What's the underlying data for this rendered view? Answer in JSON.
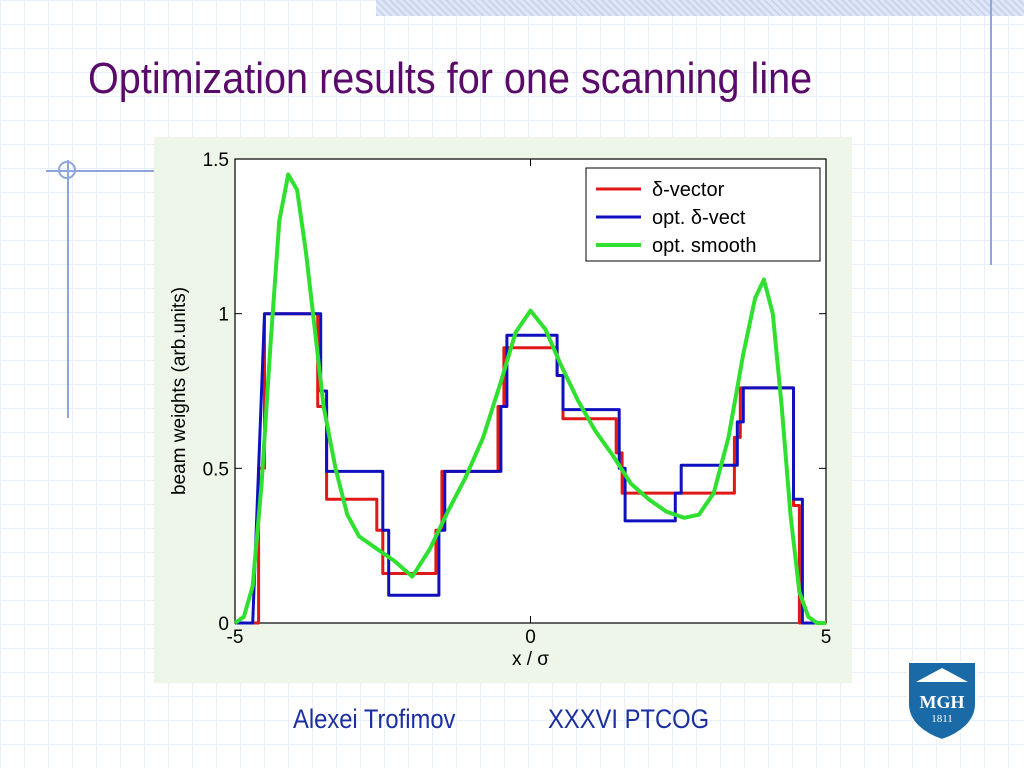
{
  "slide": {
    "title": "Optimization results for one scanning line",
    "author": "Alexei Trofimov",
    "conference": "XXXVI PTCOG",
    "logo_text": "MGH",
    "logo_year": "1811"
  },
  "colors": {
    "title": "#5a0a6a",
    "footer": "#1a2fa0",
    "plot_background": "#eef6e9",
    "delta_vector": "#e01818",
    "opt_delta_vect": "#1010c0",
    "opt_smooth": "#30e030",
    "logo": "#1a6aa8"
  },
  "chart_data": {
    "type": "line",
    "xlabel": "x / σ",
    "ylabel": "beam weights (arb.units)",
    "xlim": [
      -5,
      5
    ],
    "ylim": [
      0,
      1.5
    ],
    "x_ticks": [
      -5,
      0,
      5
    ],
    "x_tick_labels": [
      "-5",
      "0",
      "5"
    ],
    "y_ticks": [
      0,
      0.5,
      1,
      1.5
    ],
    "y_tick_labels": [
      "0",
      "0.5",
      "1",
      "1.5"
    ],
    "grid": false,
    "legend_position": "top-right",
    "series": [
      {
        "name": "δ-vector",
        "color_key": "delta_vector",
        "x": [
          -5,
          -4.6,
          -4.6,
          -4.5,
          -4.5,
          -3.6,
          -3.6,
          -3.45,
          -3.45,
          -2.6,
          -2.6,
          -2.5,
          -2.5,
          -1.6,
          -1.6,
          -1.5,
          -1.5,
          -0.55,
          -0.55,
          -0.45,
          -0.45,
          0.45,
          0.45,
          0.55,
          0.55,
          1.45,
          1.45,
          1.55,
          1.55,
          2.45,
          2.45,
          2.55,
          2.55,
          3.45,
          3.45,
          3.55,
          3.55,
          4.45,
          4.45,
          4.55,
          4.55,
          5
        ],
        "y": [
          0,
          0,
          0.5,
          0.5,
          1.0,
          1.0,
          0.7,
          0.7,
          0.4,
          0.4,
          0.3,
          0.3,
          0.16,
          0.16,
          0.3,
          0.3,
          0.49,
          0.49,
          0.7,
          0.7,
          0.89,
          0.89,
          0.8,
          0.8,
          0.66,
          0.66,
          0.55,
          0.55,
          0.42,
          0.42,
          0.42,
          0.42,
          0.42,
          0.42,
          0.6,
          0.6,
          0.76,
          0.76,
          0.38,
          0.38,
          0,
          0
        ]
      },
      {
        "name": "opt. δ-vect",
        "color_key": "opt_delta_vect",
        "x": [
          -5,
          -4.7,
          -4.5,
          -4.5,
          -3.55,
          -3.55,
          -3.45,
          -3.45,
          -2.5,
          -2.5,
          -2.4,
          -2.4,
          -1.55,
          -1.55,
          -1.45,
          -1.45,
          -0.5,
          -0.5,
          -0.4,
          -0.4,
          0.45,
          0.45,
          0.55,
          0.55,
          1.5,
          1.5,
          1.6,
          1.6,
          2.45,
          2.45,
          2.55,
          2.55,
          3.5,
          3.5,
          3.6,
          3.6,
          4.45,
          4.45,
          4.6,
          4.6,
          5
        ],
        "y": [
          0,
          0,
          1.0,
          1.0,
          1.0,
          0.75,
          0.75,
          0.49,
          0.49,
          0.3,
          0.3,
          0.09,
          0.09,
          0.3,
          0.3,
          0.49,
          0.49,
          0.7,
          0.7,
          0.93,
          0.93,
          0.8,
          0.8,
          0.69,
          0.69,
          0.5,
          0.5,
          0.33,
          0.33,
          0.42,
          0.42,
          0.51,
          0.51,
          0.65,
          0.65,
          0.76,
          0.76,
          0.4,
          0.4,
          0,
          0
        ]
      },
      {
        "name": "opt. smooth",
        "color_key": "opt_smooth",
        "x": [
          -5,
          -4.85,
          -4.7,
          -4.55,
          -4.4,
          -4.25,
          -4.1,
          -3.95,
          -3.8,
          -3.65,
          -3.5,
          -3.3,
          -3.1,
          -2.9,
          -2.6,
          -2.3,
          -2.0,
          -1.7,
          -1.4,
          -1.1,
          -0.8,
          -0.5,
          -0.25,
          0,
          0.25,
          0.5,
          0.8,
          1.1,
          1.4,
          1.7,
          2.0,
          2.3,
          2.6,
          2.85,
          3.1,
          3.35,
          3.6,
          3.8,
          3.95,
          4.1,
          4.25,
          4.4,
          4.55,
          4.7,
          4.85,
          5
        ],
        "y": [
          0,
          0.02,
          0.12,
          0.45,
          0.9,
          1.3,
          1.45,
          1.4,
          1.2,
          0.95,
          0.7,
          0.5,
          0.35,
          0.28,
          0.24,
          0.2,
          0.15,
          0.24,
          0.36,
          0.47,
          0.6,
          0.78,
          0.94,
          1.01,
          0.95,
          0.84,
          0.72,
          0.62,
          0.54,
          0.45,
          0.4,
          0.36,
          0.34,
          0.35,
          0.42,
          0.6,
          0.87,
          1.05,
          1.11,
          1.0,
          0.7,
          0.35,
          0.1,
          0.02,
          0,
          0
        ]
      }
    ]
  }
}
